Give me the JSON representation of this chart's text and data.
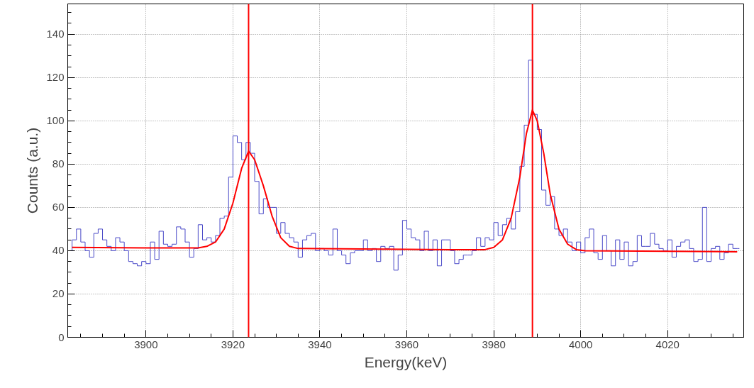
{
  "chart_data": {
    "type": "step",
    "xlabel": "Energy(keV)",
    "ylabel": "Counts (a.u.)",
    "xlim": [
      3882,
      4037.5
    ],
    "ylim": [
      0,
      154
    ],
    "xticks": [
      3900,
      3920,
      3940,
      3960,
      3980,
      4000,
      4020
    ],
    "yticks": [
      0,
      20,
      40,
      60,
      80,
      100,
      120,
      140
    ],
    "grid": true,
    "series": [
      {
        "color": "#4a4ac8",
        "x": [
          3882.5,
          3883.5,
          3884.5,
          3885.5,
          3886.5,
          3887.5,
          3888.5,
          3889.5,
          3890.5,
          3891.5,
          3892.5,
          3893.5,
          3894.5,
          3895.5,
          3896.5,
          3897.5,
          3898.5,
          3899.5,
          3900.5,
          3901.5,
          3902.5,
          3903.5,
          3904.5,
          3905.5,
          3906.5,
          3907.5,
          3908.5,
          3909.5,
          3910.5,
          3911.5,
          3912.5,
          3913.5,
          3914.5,
          3915.5,
          3916.5,
          3917.5,
          3918.5,
          3919.5,
          3920.5,
          3921.5,
          3922.5,
          3923.5,
          3924.5,
          3925.5,
          3926.5,
          3927.5,
          3928.5,
          3929.5,
          3930.5,
          3931.5,
          3932.5,
          3933.5,
          3934.5,
          3935.5,
          3936.5,
          3937.5,
          3938.5,
          3939.5,
          3940.5,
          3941.5,
          3942.5,
          3943.5,
          3944.5,
          3945.5,
          3946.5,
          3947.5,
          3948.5,
          3949.5,
          3950.5,
          3951.5,
          3952.5,
          3953.5,
          3954.5,
          3955.5,
          3956.5,
          3957.5,
          3958.5,
          3959.5,
          3960.5,
          3961.5,
          3962.5,
          3963.5,
          3964.5,
          3965.5,
          3966.5,
          3967.5,
          3968.5,
          3969.5,
          3970.5,
          3971.5,
          3972.5,
          3973.5,
          3974.5,
          3975.5,
          3976.5,
          3977.5,
          3978.5,
          3979.5,
          3980.5,
          3981.5,
          3982.5,
          3983.5,
          3984.5,
          3985.5,
          3986.5,
          3987.5,
          3988.5,
          3989.5,
          3990.5,
          3991.5,
          3992.5,
          3993.5,
          3994.5,
          3995.5,
          3996.5,
          3997.5,
          3998.5,
          3999.5,
          4000.5,
          4001.5,
          4002.5,
          4003.5,
          4004.5,
          4005.5,
          4006.5,
          4007.5,
          4008.5,
          4009.5,
          4010.5,
          4011.5,
          4012.5,
          4013.5,
          4014.5,
          4015.5,
          4016.5,
          4017.5,
          4018.5,
          4019.5,
          4020.5,
          4021.5,
          4022.5,
          4023.5,
          4024.5,
          4025.5,
          4026.5,
          4027.5,
          4028.5,
          4029.5,
          4030.5,
          4031.5,
          4032.5,
          4033.5,
          4034.5,
          4035.5,
          4036.5
        ],
        "values": [
          40,
          45,
          50,
          44,
          40,
          37,
          48,
          50,
          45,
          42,
          40,
          46,
          44,
          40,
          35,
          34,
          33,
          35,
          34,
          44,
          36,
          49,
          43,
          42,
          43,
          51,
          50,
          44,
          37,
          41,
          52,
          45,
          46,
          44,
          47,
          55,
          56,
          74,
          93,
          90,
          82,
          90,
          85,
          72,
          57,
          64,
          60,
          60,
          48,
          53,
          48,
          46,
          44,
          37,
          45,
          47,
          48,
          40,
          41,
          40,
          38,
          50,
          40,
          38,
          34,
          39,
          40,
          40,
          45,
          40,
          41,
          35,
          42,
          41,
          42,
          31,
          38,
          54,
          50,
          46,
          45,
          40,
          49,
          40,
          45,
          33,
          45,
          45,
          40,
          34,
          36,
          38,
          38,
          40,
          46,
          42,
          46,
          45,
          53,
          47,
          52,
          55,
          50,
          58,
          79,
          98,
          128,
          103,
          96,
          68,
          61,
          65,
          50,
          47,
          50,
          44,
          40,
          44,
          39,
          46,
          50,
          39,
          36,
          47,
          40,
          33,
          45,
          36,
          44,
          33,
          35,
          47,
          42,
          42,
          48,
          43,
          41,
          40,
          45,
          37,
          42,
          44,
          45,
          41,
          35,
          36,
          60,
          35,
          41,
          42,
          36,
          39,
          43,
          41,
          41
        ]
      },
      {
        "type": "line",
        "color": "#ff0000",
        "x": [
          3883,
          3900,
          3912,
          3914,
          3916,
          3918,
          3920,
          3922,
          3923.6,
          3925,
          3927,
          3929,
          3931,
          3933,
          3935,
          3950,
          3970,
          3978,
          3980,
          3982,
          3984,
          3986,
          3987.5,
          3988.9,
          3990,
          3991.5,
          3993,
          3995,
          3997,
          3999,
          4001,
          4020,
          4036
        ],
        "values": [
          41.5,
          41.3,
          41.3,
          42,
          44,
          50,
          62,
          78,
          86,
          82,
          70,
          56,
          46,
          42,
          41,
          40.8,
          40.5,
          40.5,
          41.5,
          45,
          55,
          74,
          94,
          105,
          100,
          85,
          66,
          50,
          43,
          40.5,
          40,
          39.7,
          39.5
        ]
      }
    ],
    "ref_lines": [
      {
        "axis": "x",
        "value": 3923.6,
        "color": "#ff0000"
      },
      {
        "axis": "x",
        "value": 3988.9,
        "color": "#ff0000"
      }
    ]
  }
}
